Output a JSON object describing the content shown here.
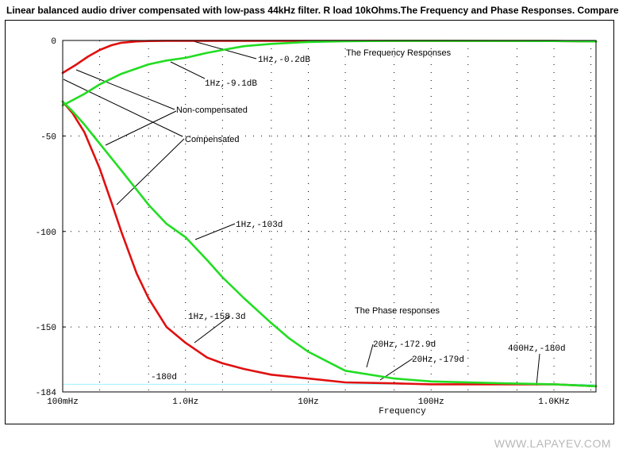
{
  "title": "Linear balanced audio driver compensated with low-pass 44kHz filter. R load 10kOhms.The Frequency and Phase Responses. Compare.",
  "watermark": "WWW.LAPAYEV.COM",
  "chart_data": {
    "type": "line",
    "xlabel": "Frequency",
    "ylabel": "",
    "x_scale": "log",
    "xlim": [
      0.1,
      2200
    ],
    "ylim": [
      -184,
      0
    ],
    "x_ticks": [
      {
        "value": 0.1,
        "label": "100mHz"
      },
      {
        "value": 1,
        "label": "1.0Hz"
      },
      {
        "value": 10,
        "label": "10Hz"
      },
      {
        "value": 100,
        "label": "100Hz"
      },
      {
        "value": 1000,
        "label": "1.0KHz"
      }
    ],
    "y_ticks": [
      {
        "value": 0,
        "label": "0"
      },
      {
        "value": -50,
        "label": "-50"
      },
      {
        "value": -100,
        "label": "-100"
      },
      {
        "value": -150,
        "label": "-150"
      },
      {
        "value": -184,
        "label": "-184"
      }
    ],
    "grid": "dotted",
    "series": [
      {
        "role": "magnitude-compensated",
        "color": "#e01010",
        "x": [
          0.1,
          0.13,
          0.16,
          0.2,
          0.25,
          0.3,
          0.4,
          0.5,
          0.7,
          1,
          2,
          5,
          10,
          100,
          1000,
          2200
        ],
        "y": [
          -17,
          -12.5,
          -8.5,
          -5,
          -2.5,
          -1.2,
          -0.5,
          -0.3,
          -0.2,
          -0.2,
          -0.2,
          -0.2,
          -0.2,
          -0.2,
          -0.3,
          -0.5
        ]
      },
      {
        "role": "magnitude-non-compensated",
        "color": "#22dd22",
        "x": [
          0.1,
          0.15,
          0.2,
          0.3,
          0.5,
          0.7,
          1,
          1.5,
          2,
          3,
          5,
          10,
          20,
          50,
          100,
          1000,
          2200
        ],
        "y": [
          -34,
          -28,
          -23,
          -17.5,
          -12.5,
          -10.5,
          -9.1,
          -6.5,
          -5,
          -3,
          -1.8,
          -0.8,
          -0.4,
          -0.2,
          -0.2,
          -0.3,
          -0.5
        ]
      },
      {
        "role": "phase-compensated",
        "color": "#e01010",
        "x": [
          0.1,
          0.12,
          0.15,
          0.2,
          0.25,
          0.3,
          0.4,
          0.5,
          0.7,
          1,
          1.5,
          2,
          3,
          5,
          10,
          20,
          50,
          100,
          400,
          1000,
          2200
        ],
        "y": [
          -32,
          -38,
          -48,
          -67,
          -85,
          -100,
          -122,
          -135,
          -150,
          -158.3,
          -166,
          -169,
          -172,
          -175,
          -177,
          -179,
          -179.5,
          -180,
          -180,
          -180,
          -181
        ]
      },
      {
        "role": "phase-non-compensated",
        "color": "#22dd22",
        "x": [
          0.1,
          0.12,
          0.15,
          0.2,
          0.3,
          0.5,
          0.7,
          1,
          1.5,
          2,
          3,
          5,
          7,
          10,
          20,
          50,
          100,
          400,
          1000,
          2200
        ],
        "y": [
          -32,
          -37,
          -44,
          -54,
          -68,
          -86,
          -96,
          -103,
          -115,
          -124,
          -135,
          -148,
          -156,
          -163,
          -172.9,
          -177,
          -178.5,
          -179.5,
          -180,
          -181
        ]
      }
    ],
    "reference_lines": [
      {
        "value": 0,
        "color": "#ff90ff"
      },
      {
        "value": -180,
        "color": "#a0f0ff"
      }
    ],
    "annotations": [
      {
        "text": "1Hz,-0.2dB"
      },
      {
        "text": "1Hz,-9.1dB"
      },
      {
        "text": "The Frequency Responses"
      },
      {
        "text": "Non-compensated"
      },
      {
        "text": "Compensated"
      },
      {
        "text": "1Hz,-103d"
      },
      {
        "text": "The Phase responses"
      },
      {
        "text": "1Hz,-158.3d"
      },
      {
        "text": "20Hz,-172.9d"
      },
      {
        "text": "20Hz,-179d"
      },
      {
        "text": "400Hz,-180d"
      },
      {
        "text": "-180d"
      }
    ]
  }
}
